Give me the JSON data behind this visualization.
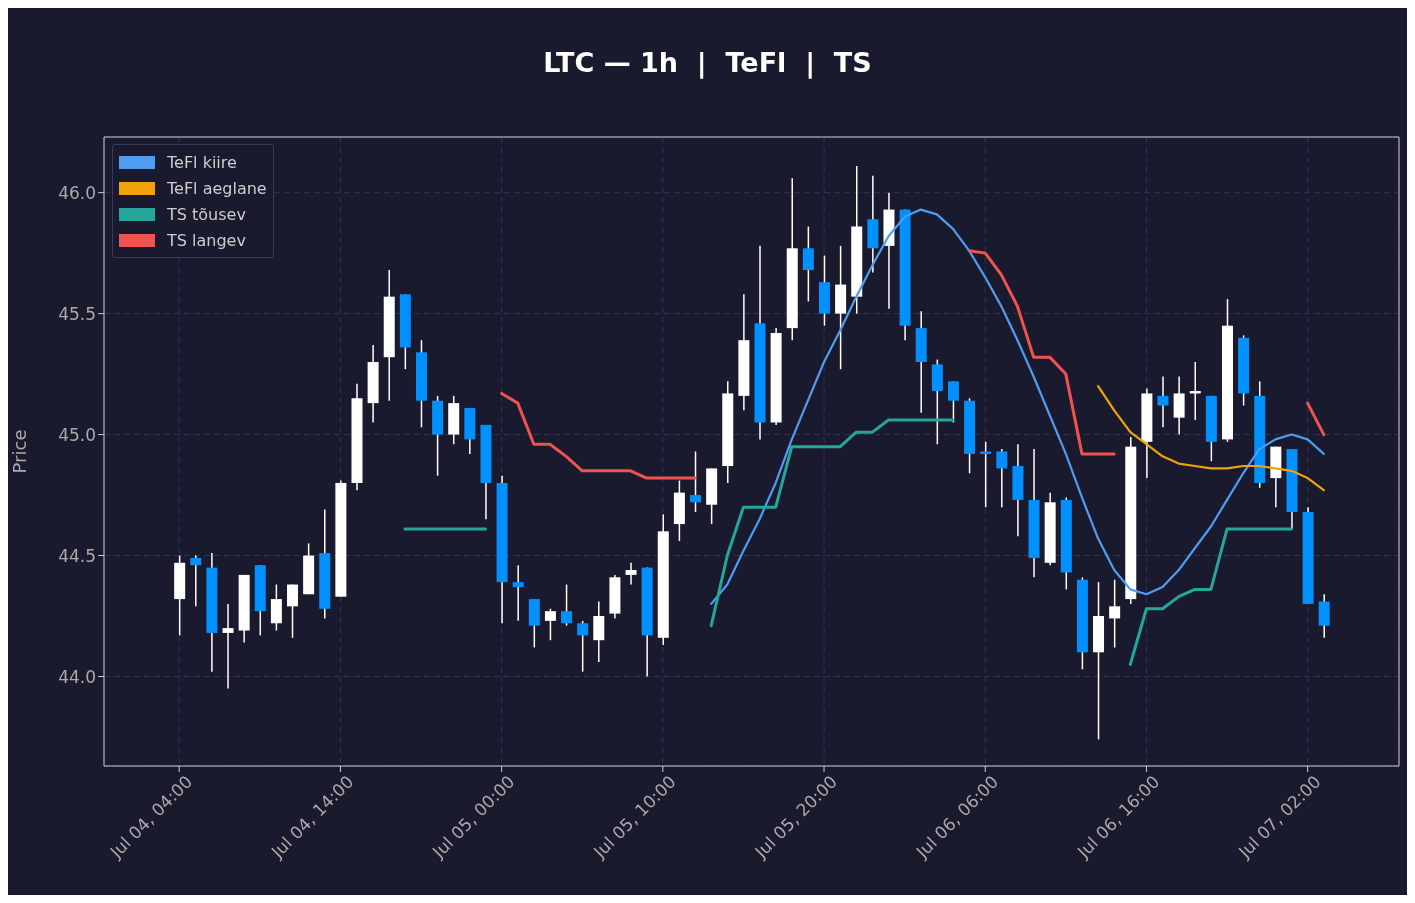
{
  "chart_data": {
    "type": "candlestick",
    "title": "LTC — 1h  |  TeFl  |  TS",
    "ylabel": "Price",
    "x": [
      "--07-04T04:00",
      "--07-04T05:00",
      "--07-04T06:00",
      "--07-04T07:00",
      "--07-04T08:00",
      "--07-04T09:00",
      "--07-04T10:00",
      "--07-04T11:00",
      "--07-04T12:00",
      "--07-04T13:00",
      "--07-04T14:00",
      "--07-04T15:00",
      "--07-04T16:00",
      "--07-04T17:00",
      "--07-04T18:00",
      "--07-04T19:00",
      "--07-04T20:00",
      "--07-04T21:00",
      "--07-04T22:00",
      "--07-04T23:00",
      "--07-05T00:00",
      "--07-05T01:00",
      "--07-05T02:00",
      "--07-05T03:00",
      "--07-05T04:00",
      "--07-05T05:00",
      "--07-05T06:00",
      "--07-05T07:00",
      "--07-05T08:00",
      "--07-05T09:00",
      "--07-05T10:00",
      "--07-05T11:00",
      "--07-05T12:00",
      "--07-05T13:00",
      "--07-05T14:00",
      "--07-05T15:00",
      "--07-05T16:00",
      "--07-05T17:00",
      "--07-05T18:00",
      "--07-05T19:00",
      "--07-05T20:00",
      "--07-05T21:00",
      "--07-05T22:00",
      "--07-05T23:00",
      "--07-06T00:00",
      "--07-06T01:00",
      "--07-06T02:00",
      "--07-06T03:00",
      "--07-06T04:00",
      "--07-06T05:00",
      "--07-06T06:00",
      "--07-06T07:00",
      "--07-06T08:00",
      "--07-06T09:00",
      "--07-06T10:00",
      "--07-06T11:00",
      "--07-06T12:00",
      "--07-06T13:00",
      "--07-06T14:00",
      "--07-06T15:00",
      "--07-06T16:00",
      "--07-06T17:00",
      "--07-06T18:00",
      "--07-06T19:00",
      "--07-06T20:00",
      "--07-06T21:00",
      "--07-06T22:00",
      "--07-06T23:00",
      "--07-07T00:00",
      "--07-07T01:00",
      "--07-07T02:00",
      "--07-07T03:00"
    ],
    "ohlc": [
      [
        44.32,
        44.5,
        44.17,
        44.47
      ],
      [
        44.49,
        44.5,
        44.29,
        44.46
      ],
      [
        44.45,
        44.51,
        44.02,
        44.18
      ],
      [
        44.18,
        44.3,
        43.95,
        44.2
      ],
      [
        44.19,
        44.42,
        44.14,
        44.42
      ],
      [
        44.46,
        44.46,
        44.17,
        44.27
      ],
      [
        44.22,
        44.38,
        44.19,
        44.32
      ],
      [
        44.29,
        44.38,
        44.16,
        44.38
      ],
      [
        44.34,
        44.55,
        44.34,
        44.5
      ],
      [
        44.51,
        44.69,
        44.24,
        44.28
      ],
      [
        44.33,
        44.81,
        44.33,
        44.8
      ],
      [
        44.8,
        45.21,
        44.77,
        45.15
      ],
      [
        45.13,
        45.37,
        45.05,
        45.3
      ],
      [
        45.32,
        45.68,
        45.14,
        45.57
      ],
      [
        45.58,
        45.58,
        45.27,
        45.36
      ],
      [
        45.34,
        45.39,
        45.03,
        45.14
      ],
      [
        45.14,
        45.16,
        44.83,
        45.0
      ],
      [
        45.0,
        45.16,
        44.96,
        45.13
      ],
      [
        45.11,
        45.11,
        44.92,
        44.98
      ],
      [
        45.04,
        45.04,
        44.65,
        44.8
      ],
      [
        44.8,
        44.83,
        44.22,
        44.39
      ],
      [
        44.39,
        44.46,
        44.23,
        44.37
      ],
      [
        44.32,
        44.32,
        44.12,
        44.21
      ],
      [
        44.23,
        44.28,
        44.15,
        44.27
      ],
      [
        44.27,
        44.38,
        44.21,
        44.22
      ],
      [
        44.22,
        44.23,
        44.02,
        44.17
      ],
      [
        44.15,
        44.31,
        44.06,
        44.25
      ],
      [
        44.26,
        44.42,
        44.24,
        44.41
      ],
      [
        44.42,
        44.47,
        44.38,
        44.44
      ],
      [
        44.45,
        44.45,
        44.0,
        44.17
      ],
      [
        44.16,
        44.67,
        44.13,
        44.6
      ],
      [
        44.63,
        44.81,
        44.56,
        44.76
      ],
      [
        44.75,
        44.93,
        44.68,
        44.72
      ],
      [
        44.71,
        44.86,
        44.63,
        44.86
      ],
      [
        44.87,
        45.22,
        44.8,
        45.17
      ],
      [
        45.16,
        45.58,
        45.1,
        45.39
      ],
      [
        45.46,
        45.78,
        44.98,
        45.05
      ],
      [
        45.05,
        45.44,
        45.04,
        45.42
      ],
      [
        45.44,
        46.06,
        45.39,
        45.77
      ],
      [
        45.77,
        45.86,
        45.55,
        45.68
      ],
      [
        45.63,
        45.74,
        45.45,
        45.5
      ],
      [
        45.5,
        45.78,
        45.27,
        45.62
      ],
      [
        45.57,
        46.11,
        45.5,
        45.86
      ],
      [
        45.89,
        46.07,
        45.67,
        45.77
      ],
      [
        45.78,
        46.0,
        45.52,
        45.93
      ],
      [
        45.93,
        45.93,
        45.39,
        45.45
      ],
      [
        45.44,
        45.51,
        45.09,
        45.3
      ],
      [
        45.29,
        45.31,
        44.96,
        45.18
      ],
      [
        45.22,
        45.22,
        45.05,
        45.14
      ],
      [
        45.14,
        45.15,
        44.84,
        44.92
      ],
      [
        44.93,
        44.97,
        44.7,
        44.92
      ],
      [
        44.93,
        44.94,
        44.7,
        44.86
      ],
      [
        44.87,
        44.96,
        44.58,
        44.73
      ],
      [
        44.73,
        44.94,
        44.41,
        44.49
      ],
      [
        44.47,
        44.76,
        44.46,
        44.72
      ],
      [
        44.73,
        44.74,
        44.36,
        44.43
      ],
      [
        44.4,
        44.41,
        44.03,
        44.1
      ],
      [
        44.1,
        44.39,
        43.74,
        44.25
      ],
      [
        44.24,
        44.4,
        44.12,
        44.29
      ],
      [
        44.32,
        44.99,
        44.3,
        44.95
      ],
      [
        44.97,
        45.19,
        44.82,
        45.17
      ],
      [
        45.16,
        45.24,
        45.03,
        45.12
      ],
      [
        45.07,
        45.24,
        45.0,
        45.17
      ],
      [
        45.17,
        45.3,
        45.06,
        45.18
      ],
      [
        45.16,
        45.16,
        44.89,
        44.97
      ],
      [
        44.98,
        45.56,
        44.97,
        45.45
      ],
      [
        45.4,
        45.41,
        45.12,
        45.17
      ],
      [
        45.16,
        45.22,
        44.78,
        44.8
      ],
      [
        44.82,
        44.95,
        44.7,
        44.95
      ],
      [
        44.94,
        44.94,
        44.61,
        44.68
      ],
      [
        44.68,
        44.7,
        44.3,
        44.3
      ],
      [
        44.31,
        44.34,
        44.16,
        44.21
      ]
    ],
    "colors": [
      "#ffffff",
      "#0090ff",
      "#0090ff",
      "#ffffff",
      "#ffffff",
      "#0090ff",
      "#ffffff",
      "#ffffff",
      "#ffffff",
      "#0090ff",
      "#ffffff",
      "#ffffff",
      "#ffffff",
      "#ffffff",
      "#0090ff",
      "#0090ff",
      "#0090ff",
      "#ffffff",
      "#0090ff",
      "#0090ff",
      "#0090ff",
      "#0090ff",
      "#0090ff",
      "#ffffff",
      "#0090ff",
      "#0090ff",
      "#ffffff",
      "#ffffff",
      "#ffffff",
      "#0090ff",
      "#ffffff",
      "#ffffff",
      "#0090ff",
      "#ffffff",
      "#ffffff",
      "#ffffff",
      "#0090ff",
      "#ffffff",
      "#ffffff",
      "#0090ff",
      "#0090ff",
      "#ffffff",
      "#ffffff",
      "#0090ff",
      "#ffffff",
      "#0090ff",
      "#0090ff",
      "#0090ff",
      "#0090ff",
      "#0090ff",
      "#0090ff",
      "#0090ff",
      "#0090ff",
      "#0090ff",
      "#ffffff",
      "#0090ff",
      "#0090ff",
      "#ffffff",
      "#ffffff",
      "#ffffff",
      "#ffffff",
      "#0090ff",
      "#ffffff",
      "#ffffff",
      "#0090ff",
      "#ffffff",
      "#0090ff",
      "#0090ff",
      "#ffffff",
      "#0090ff",
      "#0090ff",
      "#0090ff"
    ],
    "series": [
      {
        "name": "TeFl kiire",
        "type": "line",
        "color": "#4f9cf0",
        "x": [
          "--07-05T13:00",
          "--07-05T14:00",
          "--07-05T15:00",
          "--07-05T16:00",
          "--07-05T17:00",
          "--07-05T18:00",
          "--07-05T19:00",
          "--07-05T20:00",
          "--07-05T21:00",
          "--07-05T22:00",
          "--07-05T23:00",
          "--07-06T00:00",
          "--07-06T01:00",
          "--07-06T02:00",
          "--07-06T03:00",
          "--07-06T04:00",
          "--07-06T05:00",
          "--07-06T06:00",
          "--07-06T07:00",
          "--07-06T08:00",
          "--07-06T09:00",
          "--07-06T10:00",
          "--07-06T11:00",
          "--07-06T12:00",
          "--07-06T13:00",
          "--07-06T14:00",
          "--07-06T15:00",
          "--07-06T16:00",
          "--07-06T17:00",
          "--07-06T18:00",
          "--07-06T19:00",
          "--07-06T20:00",
          "--07-06T21:00",
          "--07-06T22:00",
          "--07-06T23:00",
          "--07-07T00:00",
          "--07-07T01:00",
          "--07-07T02:00",
          "--07-07T03:00"
        ],
        "values": [
          44.3,
          44.38,
          44.52,
          44.65,
          44.8,
          44.98,
          45.14,
          45.3,
          45.43,
          45.57,
          45.7,
          45.82,
          45.9,
          45.93,
          45.91,
          45.85,
          45.76,
          45.65,
          45.53,
          45.39,
          45.24,
          45.08,
          44.92,
          44.74,
          44.57,
          44.44,
          44.36,
          44.34,
          44.37,
          44.44,
          44.53,
          44.62,
          44.73,
          44.84,
          44.94,
          44.98,
          45.0,
          44.98,
          44.92
        ]
      },
      {
        "name": "TeFl aeglane",
        "type": "line",
        "color": "#f0a30a",
        "x": [
          "--07-06T13:00",
          "--07-06T14:00",
          "--07-06T15:00",
          "--07-06T16:00",
          "--07-06T17:00",
          "--07-06T18:00",
          "--07-06T19:00",
          "--07-06T20:00",
          "--07-06T21:00",
          "--07-06T22:00",
          "--07-06T23:00",
          "--07-07T00:00",
          "--07-07T01:00",
          "--07-07T02:00",
          "--07-07T03:00"
        ],
        "values": [
          45.2,
          45.1,
          45.01,
          44.96,
          44.91,
          44.88,
          44.87,
          44.86,
          44.86,
          44.87,
          44.87,
          44.86,
          44.85,
          44.82,
          44.77
        ]
      },
      {
        "name": "TS tõusev",
        "type": "line",
        "color": "#26a69a",
        "x": [
          "--07-04T18:00",
          "--07-04T19:00",
          "--07-04T20:00",
          "--07-04T21:00",
          "--07-04T22:00",
          "--07-04T23:00",
          "--07-05T00:00",
          "--07-05T01:00",
          "--07-05T02:00",
          "--07-05T03:00",
          "--07-05T04:00",
          "--07-05T05:00",
          "--07-05T06:00",
          "--07-05T07:00",
          "--07-05T08:00",
          "--07-05T09:00",
          "--07-05T10:00",
          "--07-05T11:00",
          "--07-05T12:00",
          "--07-05T13:00",
          "--07-05T14:00",
          "--07-05T15:00",
          "--07-05T16:00",
          "--07-05T17:00",
          "--07-05T18:00",
          "--07-05T19:00",
          "--07-05T20:00",
          "--07-05T21:00",
          "--07-05T22:00",
          "--07-05T23:00",
          "--07-06T00:00",
          "--07-06T01:00",
          "--07-06T02:00",
          "--07-06T03:00",
          "--07-06T04:00",
          "--07-06T05:00",
          "--07-06T06:00",
          "--07-06T07:00",
          "--07-06T08:00",
          "--07-06T09:00",
          "--07-06T10:00",
          "--07-06T11:00",
          "--07-06T12:00",
          "--07-06T13:00",
          "--07-06T14:00",
          "--07-06T15:00",
          "--07-06T16:00",
          "--07-06T17:00",
          "--07-06T18:00",
          "--07-06T19:00",
          "--07-06T20:00",
          "--07-06T21:00",
          "--07-06T22:00",
          "--07-06T23:00",
          "--07-07T00:00",
          "--07-07T01:00"
        ],
        "values": [
          44.61,
          44.61,
          44.61,
          44.61,
          44.61,
          44.61,
          null,
          null,
          null,
          null,
          null,
          null,
          null,
          null,
          null,
          null,
          null,
          null,
          null,
          44.21,
          44.5,
          44.7,
          44.7,
          44.7,
          44.95,
          44.95,
          44.95,
          44.95,
          45.01,
          45.01,
          45.06,
          45.06,
          45.06,
          45.06,
          45.06,
          null,
          null,
          null,
          null,
          null,
          null,
          null,
          null,
          null,
          null,
          44.05,
          44.28,
          44.28,
          44.33,
          44.36,
          44.36,
          44.61,
          44.61,
          44.61,
          44.61,
          44.61
        ]
      },
      {
        "name": "TS langev",
        "type": "line",
        "color": "#ef5350",
        "x": [
          "--07-05T00:00",
          "--07-05T01:00",
          "--07-05T02:00",
          "--07-05T03:00",
          "--07-05T04:00",
          "--07-05T05:00",
          "--07-05T06:00",
          "--07-05T07:00",
          "--07-05T08:00",
          "--07-05T09:00",
          "--07-05T10:00",
          "--07-05T11:00",
          "--07-05T12:00",
          "--07-05T13:00",
          "--07-05T14:00",
          "--07-05T15:00",
          "--07-05T16:00",
          "--07-05T17:00",
          "--07-05T18:00",
          "--07-05T19:00",
          "--07-05T20:00",
          "--07-05T21:00",
          "--07-05T22:00",
          "--07-05T23:00",
          "--07-06T00:00",
          "--07-06T01:00",
          "--07-06T02:00",
          "--07-06T03:00",
          "--07-06T04:00",
          "--07-06T05:00",
          "--07-06T06:00",
          "--07-06T07:00",
          "--07-06T08:00",
          "--07-06T09:00",
          "--07-06T10:00",
          "--07-06T11:00",
          "--07-06T12:00",
          "--07-06T13:00",
          "--07-06T14:00",
          "--07-06T15:00",
          "--07-06T16:00",
          "--07-06T17:00",
          "--07-06T18:00",
          "--07-06T19:00",
          "--07-06T20:00",
          "--07-06T21:00",
          "--07-06T22:00",
          "--07-06T23:00",
          "--07-07T00:00",
          "--07-07T01:00",
          "--07-07T02:00",
          "--07-07T03:00"
        ],
        "values": [
          45.17,
          45.13,
          44.96,
          44.96,
          44.91,
          44.85,
          44.85,
          44.85,
          44.85,
          44.82,
          44.82,
          44.82,
          44.82,
          null,
          null,
          null,
          null,
          null,
          null,
          null,
          null,
          null,
          null,
          null,
          null,
          null,
          null,
          null,
          null,
          45.76,
          45.75,
          45.66,
          45.53,
          45.32,
          45.32,
          45.25,
          44.92,
          44.92,
          44.92,
          null,
          null,
          null,
          null,
          null,
          null,
          null,
          null,
          null,
          null,
          null,
          45.13,
          45.0
        ]
      }
    ],
    "xlim": [
      "--07-03T23:20",
      "--07-07T07:40"
    ],
    "xticks": [
      {
        "value": "--07-04T04:00",
        "label": "Jul 04, 04:00"
      },
      {
        "value": "--07-04T14:00",
        "label": "Jul 04, 14:00"
      },
      {
        "value": "--07-05T00:00",
        "label": "Jul 05, 00:00"
      },
      {
        "value": "--07-05T10:00",
        "label": "Jul 05, 10:00"
      },
      {
        "value": "--07-05T20:00",
        "label": "Jul 05, 20:00"
      },
      {
        "value": "--07-06T06:00",
        "label": "Jul 06, 06:00"
      },
      {
        "value": "--07-06T16:00",
        "label": "Jul 06, 16:00"
      },
      {
        "value": "--07-07T02:00",
        "label": "Jul 07, 02:00"
      }
    ],
    "ylim": [
      43.63,
      46.23
    ],
    "yticks": [
      {
        "value": 44,
        "label": "44.0"
      },
      {
        "value": 44.5,
        "label": "44.5"
      },
      {
        "value": 45,
        "label": "45.0"
      },
      {
        "value": 45.5,
        "label": "45.5"
      },
      {
        "value": 46,
        "label": "46.0"
      }
    ],
    "grid": true,
    "legend": "top left",
    "line_style": "solid",
    "marker": "none"
  }
}
